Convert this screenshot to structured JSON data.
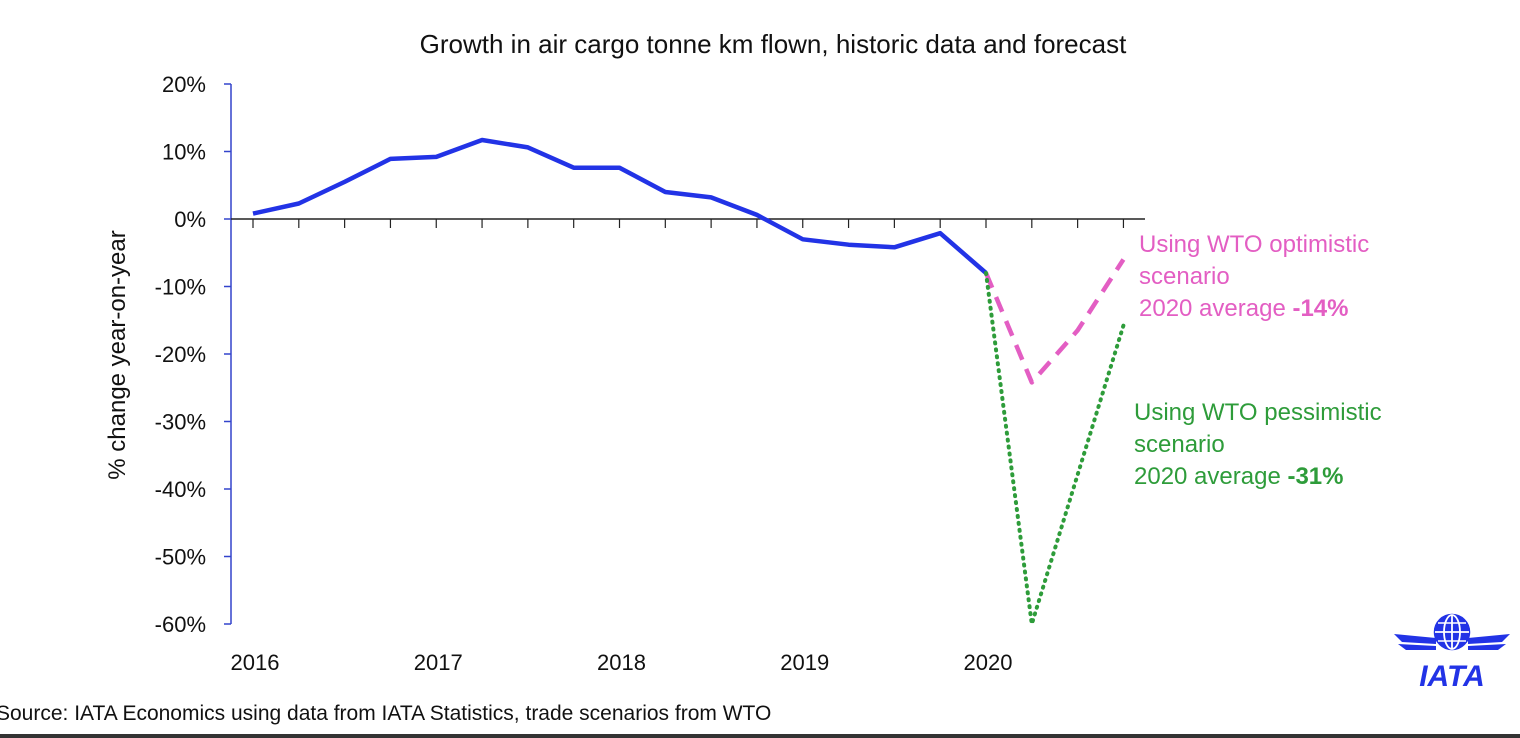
{
  "chart_data": {
    "type": "line",
    "title": "Growth in air cargo tonne km flown, historic data and forecast",
    "ylabel": "% change year-on-year",
    "xlabel": "",
    "ylim": [
      -60,
      20
    ],
    "y_ticks": [
      "20%",
      "10%",
      "0%",
      "-10%",
      "-20%",
      "-30%",
      "-40%",
      "-50%",
      "-60%"
    ],
    "y_tick_values": [
      20,
      10,
      0,
      -10,
      -20,
      -30,
      -40,
      -50,
      -60
    ],
    "x_ticks": [
      "2016",
      "2017",
      "2018",
      "2019",
      "2020"
    ],
    "x_tick_values": [
      2016,
      2017,
      2018,
      2019,
      2020
    ],
    "xlim": [
      2015.875,
      2020.875
    ],
    "grid": false,
    "series": [
      {
        "style": "solid",
        "color": "#2233e6",
        "x": [
          2016.0,
          2016.25,
          2016.5,
          2016.75,
          2017.0,
          2017.25,
          2017.5,
          2017.75,
          2018.0,
          2018.25,
          2018.5,
          2018.75,
          2019.0,
          2019.25,
          2019.5,
          2019.75,
          2020.0
        ],
        "y": [
          0.8,
          2.3,
          5.5,
          8.9,
          9.2,
          11.7,
          10.6,
          7.6,
          7.6,
          4.0,
          3.2,
          0.6,
          -3.0,
          -3.8,
          -4.2,
          -2.1,
          -8.0
        ]
      },
      {
        "style": "dashed",
        "color": "#e35ec3",
        "x": [
          2020.0,
          2020.25,
          2020.5,
          2020.75
        ],
        "y": [
          -8.0,
          -24.2,
          -16.5,
          -6.0
        ]
      },
      {
        "style": "dotted",
        "color": "#2e9c3a",
        "x": [
          2020.0,
          2020.25,
          2020.75
        ],
        "y": [
          -8.0,
          -60.0,
          -15.8
        ]
      }
    ],
    "annotations": {
      "optimistic": {
        "line1": "Using WTO optimistic",
        "line2": "scenario",
        "line3": "2020 average ",
        "value": "-14%"
      },
      "pessimistic": {
        "line1": "Using WTO pessimistic",
        "line2": "scenario",
        "line3": "2020 average ",
        "value": "-31%"
      }
    }
  },
  "source": "Source: IATA Economics using data from IATA Statistics, trade scenarios from WTO",
  "logo": {
    "name": "IATA",
    "color": "#2233e6"
  }
}
